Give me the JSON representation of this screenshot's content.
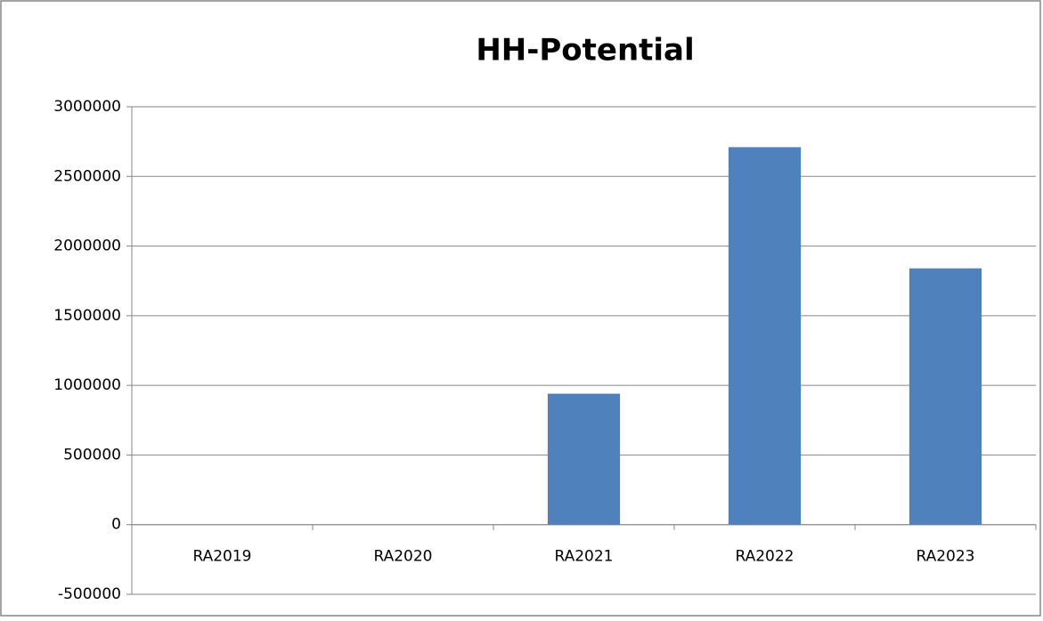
{
  "chart_data": {
    "type": "bar",
    "title": "HH-Potential",
    "categories": [
      "RA2019",
      "RA2020",
      "RA2021",
      "RA2022",
      "RA2023"
    ],
    "values": [
      0,
      0,
      940000,
      2710000,
      1840000
    ],
    "color": "#4f81bd",
    "ylim": [
      -500000,
      3000000
    ],
    "yticks": [
      -500000,
      0,
      500000,
      1000000,
      1500000,
      2000000,
      2500000,
      3000000
    ],
    "grid": true
  }
}
